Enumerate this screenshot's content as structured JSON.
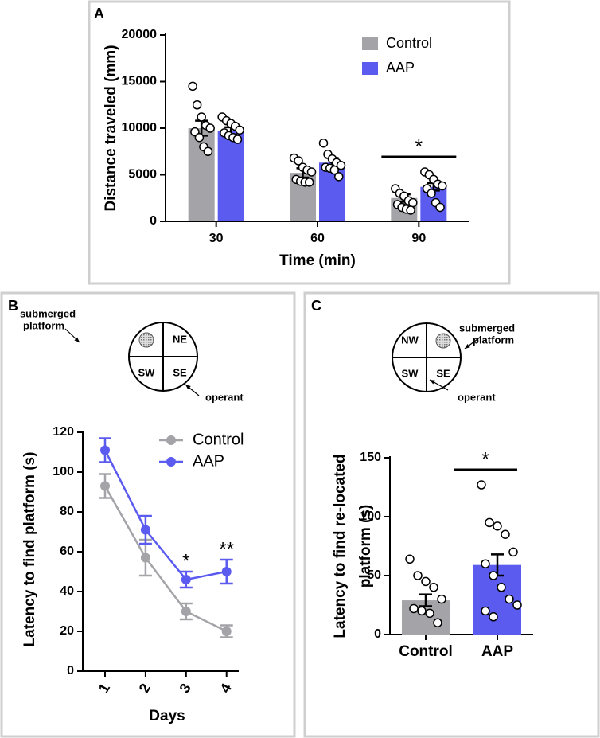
{
  "chart_data": [
    {
      "type": "bar",
      "panel_label": "A",
      "categories": [
        "30",
        "60",
        "90"
      ],
      "series": [
        {
          "name": "Control",
          "color": "#a3a3a8",
          "values": [
            10000,
            5200,
            2500
          ],
          "errors": [
            800,
            500,
            400
          ],
          "points": [
            [
              14500,
              12500,
              11200,
              10300,
              10000,
              9600,
              9000,
              8000,
              7500
            ],
            [
              6800,
              6500,
              5800,
              5500,
              5300,
              4500,
              4300,
              4200,
              4200
            ],
            [
              3500,
              3000,
              2700,
              2200,
              2000,
              1800,
              1500,
              1300,
              1200
            ]
          ]
        },
        {
          "name": "AAP",
          "color": "#5b5bf0",
          "values": [
            9700,
            6300,
            3700
          ],
          "errors": [
            400,
            500,
            400
          ],
          "points": [
            [
              11200,
              10800,
              10500,
              10200,
              9800,
              9500,
              9200,
              9000,
              8800
            ],
            [
              8400,
              7200,
              6700,
              6300,
              6000,
              5800,
              5700,
              5500,
              4800
            ],
            [
              5300,
              5000,
              4500,
              4000,
              3800,
              3500,
              3000,
              2000,
              1500
            ]
          ]
        }
      ],
      "xlabel": "Time (min)",
      "ylabel": [
        "Distance traveled (mm)"
      ],
      "ylim": [
        0,
        20000
      ],
      "yticks": [
        0,
        5000,
        10000,
        15000,
        20000
      ],
      "legend": "upper right",
      "annotations": [
        {
          "text": "*",
          "category": "90"
        }
      ]
    },
    {
      "type": "line",
      "panel_label": "B",
      "x": [
        1,
        2,
        3,
        4
      ],
      "series": [
        {
          "name": "Control",
          "color": "#a3a3a8",
          "values": [
            93,
            57,
            30,
            20
          ],
          "errors": [
            6,
            9,
            4,
            3
          ]
        },
        {
          "name": "AAP",
          "color": "#5b5bf0",
          "values": [
            111,
            71,
            46,
            50
          ],
          "errors": [
            6,
            7,
            4,
            6
          ]
        }
      ],
      "xlabel": "Days",
      "ylabel": [
        "Latency to find platform (s)"
      ],
      "xlim": [
        0.45,
        4.3
      ],
      "xticks": [
        1,
        2,
        3,
        4
      ],
      "ylim": [
        0,
        120
      ],
      "yticks": [
        0,
        20,
        40,
        60,
        80,
        100,
        120
      ],
      "legend": "upper right",
      "annotations": [
        {
          "text": "*",
          "x": 3
        },
        {
          "text": "**",
          "x": 4
        }
      ],
      "diagram": {
        "quadrants": [
          "NE",
          "SW",
          "SE"
        ],
        "platform_quadrant": "NW",
        "platform_label": [
          "submerged",
          "platform"
        ],
        "operant_label": "operant"
      }
    },
    {
      "type": "bar",
      "panel_label": "C",
      "categories": [
        "Control",
        "AAP"
      ],
      "values": [
        29,
        59
      ],
      "errors": [
        5,
        9
      ],
      "colors": [
        "#a3a3a8",
        "#5b5bf0"
      ],
      "points": [
        [
          64,
          50,
          45,
          40,
          30,
          22,
          20,
          18,
          10
        ],
        [
          127,
          95,
          92,
          85,
          70,
          60,
          50,
          40,
          30,
          25,
          20,
          15
        ]
      ],
      "ylabel": [
        "Latency to find re-located",
        "platform (s)"
      ],
      "ylim": [
        0,
        150
      ],
      "yticks": [
        0,
        50,
        100,
        150
      ],
      "annotations": [
        {
          "text": "*"
        }
      ],
      "diagram": {
        "quadrants": [
          "NW",
          "SW",
          "SE"
        ],
        "platform_quadrant": "NE",
        "platform_label": [
          "submerged",
          "platform"
        ],
        "operant_label": "operant"
      }
    }
  ]
}
